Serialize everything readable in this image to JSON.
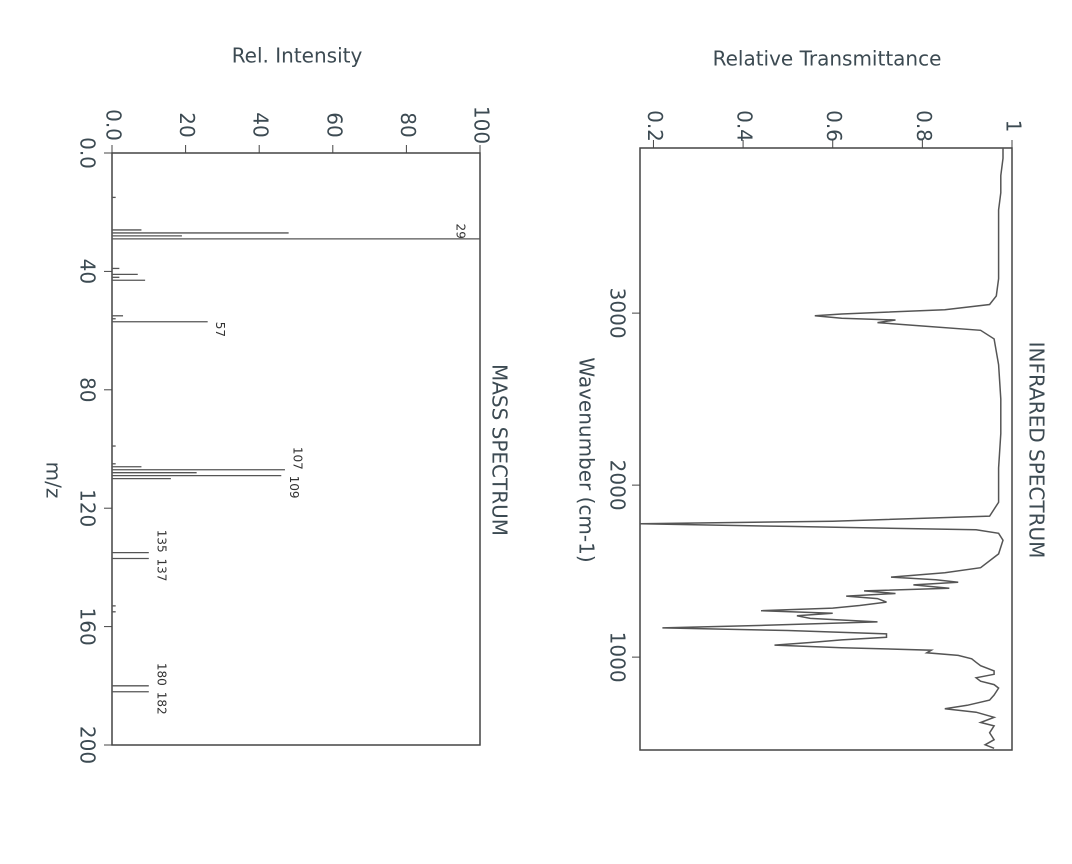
{
  "chart_data": [
    {
      "type": "bar",
      "title": "MASS SPECTRUM",
      "xlabel": "m/z",
      "ylabel": "Rel. Intensity",
      "x": [
        15,
        26,
        27,
        28,
        29,
        39,
        41,
        42,
        43,
        55,
        56,
        57,
        99,
        105,
        106,
        107,
        108,
        109,
        110,
        135,
        137,
        153,
        155,
        180,
        182
      ],
      "values": [
        1,
        8,
        48,
        19,
        100,
        2,
        7,
        2,
        9,
        3,
        1,
        26,
        1,
        1,
        8,
        47,
        23,
        46,
        16,
        10,
        10,
        1,
        1,
        10,
        10
      ],
      "labeled_peaks": [
        29,
        57,
        107,
        109,
        135,
        137,
        180,
        182
      ],
      "xlim": [
        0,
        200
      ],
      "xticks": [
        {
          "value": 0,
          "label": "0.0"
        },
        40,
        80,
        120,
        160,
        200
      ],
      "ylim": [
        0,
        100
      ],
      "yticks": [
        {
          "value": 0,
          "label": "0.0"
        },
        20,
        40,
        60,
        80,
        100
      ],
      "color": "#555555"
    },
    {
      "type": "line",
      "title": "INFRARED SPECTRUM",
      "xlabel": "Wavenumber (cm-1)",
      "ylabel": "Relative Transmittance",
      "x": [
        3960,
        3900,
        3800,
        3700,
        3600,
        3500,
        3400,
        3300,
        3200,
        3100,
        3050,
        3020,
        2995,
        2985,
        2970,
        2960,
        2945,
        2925,
        2900,
        2850,
        2700,
        2500,
        2300,
        2100,
        1900,
        1820,
        1790,
        1775,
        1760,
        1740,
        1720,
        1680,
        1600,
        1520,
        1490,
        1465,
        1450,
        1435,
        1420,
        1400,
        1385,
        1370,
        1355,
        1340,
        1320,
        1300,
        1285,
        1270,
        1255,
        1240,
        1225,
        1205,
        1185,
        1170,
        1155,
        1135,
        1115,
        1100,
        1085,
        1070,
        1055,
        1040,
        1025,
        1010,
        990,
        970,
        950,
        920,
        900,
        880,
        860,
        840,
        820,
        780,
        750,
        720,
        700,
        680,
        650,
        620,
        600,
        560,
        520,
        490,
        470
      ],
      "values": [
        0.98,
        0.98,
        0.975,
        0.975,
        0.97,
        0.97,
        0.97,
        0.97,
        0.97,
        0.965,
        0.95,
        0.85,
        0.62,
        0.56,
        0.62,
        0.74,
        0.7,
        0.8,
        0.93,
        0.96,
        0.97,
        0.975,
        0.975,
        0.97,
        0.97,
        0.95,
        0.6,
        0.17,
        0.5,
        0.92,
        0.97,
        0.98,
        0.97,
        0.93,
        0.85,
        0.73,
        0.83,
        0.88,
        0.78,
        0.86,
        0.67,
        0.74,
        0.63,
        0.7,
        0.72,
        0.66,
        0.6,
        0.44,
        0.6,
        0.52,
        0.55,
        0.7,
        0.45,
        0.22,
        0.5,
        0.72,
        0.72,
        0.62,
        0.55,
        0.47,
        0.62,
        0.82,
        0.81,
        0.88,
        0.91,
        0.92,
        0.93,
        0.96,
        0.96,
        0.92,
        0.93,
        0.96,
        0.97,
        0.96,
        0.95,
        0.9,
        0.85,
        0.92,
        0.96,
        0.93,
        0.96,
        0.95,
        0.96,
        0.94,
        0.96
      ],
      "xlim": [
        3960,
        460
      ],
      "xticks": [
        3000,
        2000,
        1000
      ],
      "ylim": [
        0.17,
        1
      ],
      "yticks": [
        0.2,
        0.4,
        0.6,
        0.8,
        1
      ],
      "color": "#555555"
    }
  ]
}
